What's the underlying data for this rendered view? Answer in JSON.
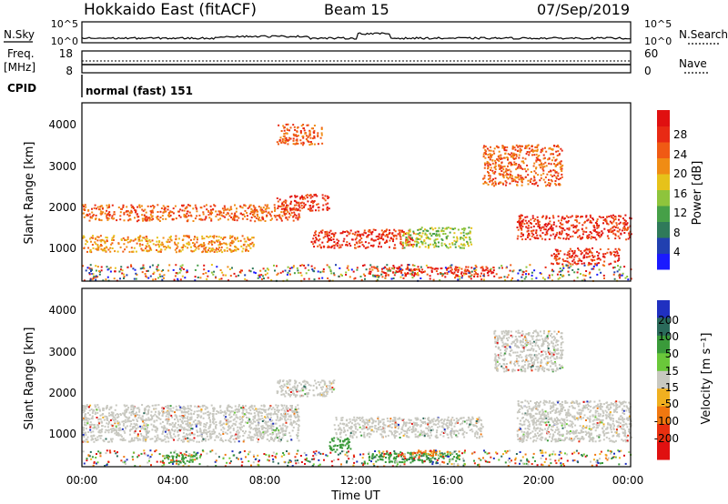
{
  "header": {
    "title": "Hokkaido East (fitACF)",
    "beam": "Beam 15",
    "date": "07/Sep/2019"
  },
  "top_panel": {
    "left_label": "N.Sky",
    "right_label": "N.Search",
    "left_ticks": [
      "10^5",
      "10^0"
    ],
    "right_ticks": [
      "10^5",
      "10^0"
    ]
  },
  "freq_panel": {
    "left_label_1": "Freq.",
    "left_label_2": "[MHz]",
    "left_ticks": [
      "18",
      "8"
    ],
    "right_label": "Nave",
    "right_ticks": [
      "60",
      "0"
    ]
  },
  "cpid_panel": {
    "label": "CPID",
    "mode": "normal (fast) 151"
  },
  "power_panel": {
    "ylabel": "Slant Range [km]",
    "yticks": [
      "4000",
      "3000",
      "2000",
      "1000"
    ],
    "colorbar_label": "Power [dB]",
    "colorbar_ticks": [
      "28",
      "24",
      "20",
      "16",
      "12",
      "8",
      "4"
    ],
    "colors": [
      "#1a1aff",
      "#2140b0",
      "#2f7a5a",
      "#46a048",
      "#8ec43c",
      "#e6c21a",
      "#f08c14",
      "#f05a14",
      "#e82a14",
      "#e01010"
    ]
  },
  "velocity_panel": {
    "ylabel": "Slant Range [km]",
    "yticks": [
      "4000",
      "3000",
      "2000",
      "1000"
    ],
    "colorbar_label": "Velocity [m s⁻¹]",
    "colorbar_ticks": [
      "200",
      "100",
      "50",
      "15",
      "-15",
      "-50",
      "-100",
      "-200"
    ],
    "colors": [
      "#2030c0",
      "#2a6a5a",
      "#3a9a3a",
      "#6ac83a",
      "#c8c8c0",
      "#f0b020",
      "#f07810",
      "#e83010",
      "#e01010"
    ]
  },
  "xaxis": {
    "label": "Time UT",
    "ticks": [
      "00:00",
      "04:00",
      "08:00",
      "12:00",
      "16:00",
      "20:00",
      "00:00"
    ]
  },
  "chart_data": {
    "type": "heatmap",
    "x_range_hours": [
      0,
      24
    ],
    "y_range_km": [
      180,
      4500
    ],
    "power_bands": [
      {
        "t0": 0.0,
        "t1": 9.5,
        "r0": 1650,
        "r1": 2050,
        "power_db": 22
      },
      {
        "t0": 0.0,
        "t1": 7.5,
        "r0": 900,
        "r1": 1300,
        "power_db": 20
      },
      {
        "t0": 8.5,
        "t1": 10.8,
        "r0": 1900,
        "r1": 2300,
        "power_db": 28
      },
      {
        "t0": 10.0,
        "t1": 14.5,
        "r0": 1000,
        "r1": 1450,
        "power_db": 28
      },
      {
        "t0": 12.5,
        "t1": 18.0,
        "r0": 300,
        "r1": 550,
        "power_db": 28
      },
      {
        "t0": 19.0,
        "t1": 24.0,
        "r0": 1200,
        "r1": 1800,
        "power_db": 26
      },
      {
        "t0": 20.5,
        "t1": 23.5,
        "r0": 600,
        "r1": 1000,
        "power_db": 26
      },
      {
        "t0": 17.5,
        "t1": 21.0,
        "r0": 2500,
        "r1": 3500,
        "power_db": 24
      },
      {
        "t0": 8.5,
        "t1": 10.5,
        "r0": 3500,
        "r1": 4000,
        "power_db": 24
      },
      {
        "t0": 14.0,
        "t1": 17.0,
        "r0": 1000,
        "r1": 1500,
        "power_db": 14
      }
    ],
    "velocity_bands": [
      {
        "t0": 0.0,
        "t1": 9.5,
        "r0": 800,
        "r1": 1700,
        "velocity": 0
      },
      {
        "t0": 8.5,
        "t1": 11.0,
        "r0": 1900,
        "r1": 2300,
        "velocity": 0
      },
      {
        "t0": 11.0,
        "t1": 17.5,
        "r0": 900,
        "r1": 1400,
        "velocity": 0
      },
      {
        "t0": 19.0,
        "t1": 24.0,
        "r0": 800,
        "r1": 1800,
        "velocity": 0
      },
      {
        "t0": 18.0,
        "t1": 21.0,
        "r0": 2500,
        "r1": 3500,
        "velocity": 0
      },
      {
        "t0": 10.8,
        "t1": 11.8,
        "r0": 600,
        "r1": 900,
        "velocity": 50
      },
      {
        "t0": 12.5,
        "t1": 16.5,
        "r0": 300,
        "r1": 550,
        "velocity": 50
      },
      {
        "t0": 3.5,
        "t1": 5.0,
        "r0": 300,
        "r1": 550,
        "velocity": 50
      },
      {
        "t0": 14.5,
        "t1": 15.5,
        "r0": 450,
        "r1": 600,
        "velocity": -50
      }
    ]
  }
}
